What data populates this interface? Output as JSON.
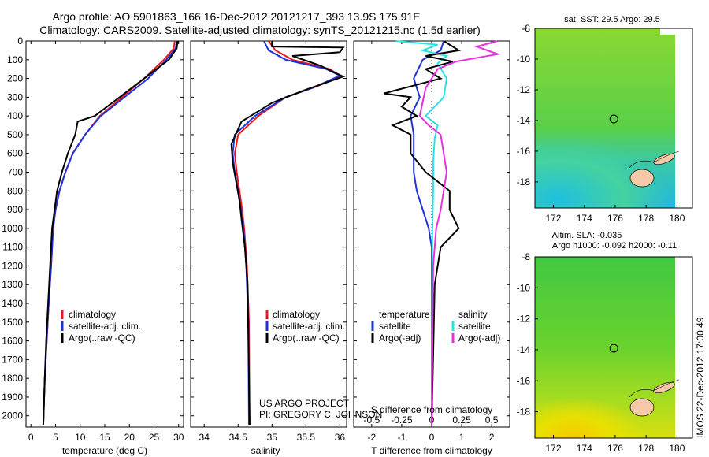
{
  "title_line1": "Argo profile: AO 5901863_166 16-Dec-2012 20121217_393 13.9S 175.91E",
  "title_line2": "Climatology: CARS2009. Satellite-adjusted climatology: synTS_20121215.nc (1.5d earlier)",
  "colors": {
    "clim": "#e8191e",
    "sat": "#1f32d8",
    "argo": "#000000",
    "sal_sat": "#27e3e8",
    "sal_argo": "#e830e0"
  },
  "chart_data": [
    {
      "type": "line",
      "name": "temperature",
      "xlabel": "temperature (deg C)",
      "ylabel": "",
      "xlim": [
        -1,
        31
      ],
      "ylim": [
        2060,
        0
      ],
      "xticks": [
        "0",
        "5",
        "10",
        "15",
        "20",
        "25",
        "30"
      ],
      "xtick_values": [
        0,
        5,
        10,
        15,
        20,
        25,
        30
      ],
      "yticks": [
        "0",
        "100",
        "200",
        "300",
        "400",
        "500",
        "600",
        "700",
        "800",
        "900",
        "1000",
        "1100",
        "1200",
        "1300",
        "1400",
        "1500",
        "1600",
        "1700",
        "1800",
        "1900",
        "2000"
      ],
      "ytick_values": [
        0,
        100,
        200,
        300,
        400,
        500,
        600,
        700,
        800,
        900,
        1000,
        1100,
        1200,
        1300,
        1400,
        1500,
        1600,
        1700,
        1800,
        1900,
        2000
      ],
      "legend": [
        "climatology",
        "satellite-adj. clim.",
        "Argo(..raw -QC)"
      ],
      "series": [
        {
          "name": "climatology",
          "color": "clim",
          "points": [
            [
              29.2,
              0
            ],
            [
              29.0,
              40
            ],
            [
              27.0,
              100
            ],
            [
              23.0,
              200
            ],
            [
              18.5,
              300
            ],
            [
              14.0,
              400
            ],
            [
              11.0,
              500
            ],
            [
              8.5,
              600
            ],
            [
              7.0,
              700
            ],
            [
              5.8,
              800
            ],
            [
              5.0,
              900
            ],
            [
              4.5,
              1000
            ],
            [
              4.1,
              1200
            ],
            [
              3.6,
              1400
            ],
            [
              3.2,
              1600
            ],
            [
              2.8,
              1800
            ],
            [
              2.5,
              2050
            ]
          ]
        },
        {
          "name": "satellite-adj. clim.",
          "color": "sat",
          "points": [
            [
              29.6,
              0
            ],
            [
              29.4,
              40
            ],
            [
              27.5,
              100
            ],
            [
              23.8,
              200
            ],
            [
              19.0,
              300
            ],
            [
              14.2,
              400
            ],
            [
              11.0,
              500
            ],
            [
              8.5,
              600
            ],
            [
              7.0,
              700
            ],
            [
              5.8,
              800
            ],
            [
              5.0,
              900
            ],
            [
              4.5,
              1000
            ],
            [
              4.1,
              1200
            ],
            [
              3.6,
              1400
            ],
            [
              3.2,
              1600
            ],
            [
              2.8,
              1800
            ],
            [
              2.5,
              2050
            ]
          ]
        },
        {
          "name": "Argo(..raw -QC)",
          "color": "argo",
          "points": [
            [
              29.8,
              0
            ],
            [
              29.6,
              40
            ],
            [
              28.0,
              100
            ],
            [
              23.0,
              200
            ],
            [
              18.0,
              300
            ],
            [
              13.0,
              400
            ],
            [
              9.5,
              430
            ],
            [
              9.0,
              500
            ],
            [
              7.5,
              600
            ],
            [
              6.3,
              700
            ],
            [
              5.3,
              800
            ],
            [
              4.8,
              900
            ],
            [
              4.3,
              1000
            ],
            [
              3.9,
              1200
            ],
            [
              3.5,
              1400
            ],
            [
              3.1,
              1600
            ],
            [
              2.8,
              1800
            ],
            [
              2.5,
              2050
            ]
          ]
        }
      ]
    },
    {
      "type": "line",
      "name": "salinity",
      "xlabel": "salinity",
      "xlim": [
        33.8,
        36.1
      ],
      "ylim": [
        2060,
        0
      ],
      "xticks": [
        "34",
        "34.5",
        "35",
        "35.5",
        "36"
      ],
      "xtick_values": [
        34,
        34.5,
        35,
        35.5,
        36
      ],
      "legend": [
        "climatology",
        "satellite-adj. clim.",
        "Argo(..raw -QC)"
      ],
      "annotation_line1": "US ARGO PROJECT",
      "annotation_line2": "PI: GREGORY C. JOHNSON",
      "series": [
        {
          "name": "climatology",
          "color": "clim",
          "points": [
            [
              34.95,
              0
            ],
            [
              35.05,
              50
            ],
            [
              35.3,
              100
            ],
            [
              35.85,
              150
            ],
            [
              36.02,
              190
            ],
            [
              35.6,
              250
            ],
            [
              35.2,
              300
            ],
            [
              34.8,
              400
            ],
            [
              34.5,
              500
            ],
            [
              34.45,
              600
            ],
            [
              34.48,
              700
            ],
            [
              34.52,
              800
            ],
            [
              34.56,
              900
            ],
            [
              34.59,
              1000
            ],
            [
              34.63,
              1200
            ],
            [
              34.66,
              1500
            ],
            [
              34.67,
              2050
            ]
          ]
        },
        {
          "name": "satellite-adj. clim.",
          "color": "sat",
          "points": [
            [
              34.88,
              0
            ],
            [
              34.95,
              50
            ],
            [
              35.2,
              100
            ],
            [
              35.8,
              150
            ],
            [
              36.0,
              185
            ],
            [
              35.6,
              250
            ],
            [
              35.2,
              300
            ],
            [
              34.75,
              400
            ],
            [
              34.45,
              500
            ],
            [
              34.42,
              600
            ],
            [
              34.45,
              700
            ],
            [
              34.5,
              800
            ],
            [
              34.54,
              900
            ],
            [
              34.58,
              1000
            ],
            [
              34.62,
              1200
            ],
            [
              34.65,
              1500
            ],
            [
              34.66,
              2050
            ]
          ]
        },
        {
          "name": "Argo(..raw -QC)",
          "color": "argo",
          "points": [
            [
              35.0,
              0
            ],
            [
              35.0,
              30
            ],
            [
              36.05,
              35
            ],
            [
              36.0,
              60
            ],
            [
              35.3,
              80
            ],
            [
              35.7,
              130
            ],
            [
              36.05,
              190
            ],
            [
              35.5,
              260
            ],
            [
              35.0,
              330
            ],
            [
              34.55,
              430
            ],
            [
              34.4,
              550
            ],
            [
              34.42,
              650
            ],
            [
              34.47,
              750
            ],
            [
              34.52,
              850
            ],
            [
              34.55,
              950
            ],
            [
              34.6,
              1100
            ],
            [
              34.64,
              1300
            ],
            [
              34.67,
              2050
            ]
          ]
        }
      ]
    },
    {
      "type": "line",
      "name": "differences",
      "xlabel": "T difference from climatology",
      "xlabel_top": "S difference from climatology",
      "xlim": [
        -2.6,
        2.6
      ],
      "ylim": [
        2060,
        0
      ],
      "xticks": [
        "-2",
        "-1",
        "0",
        "1",
        "2"
      ],
      "xtick_values": [
        -2,
        -1,
        0,
        1,
        2
      ],
      "sticks": [
        "-0.5",
        "-0.25",
        "0",
        "0.25",
        "0.5"
      ],
      "stick_values": [
        -2,
        -1,
        0,
        1,
        2
      ],
      "legend_title_left": "temperature",
      "legend_title_right": "salinity",
      "legend": [
        "satellite",
        "Argo(-adj)",
        "satellite",
        "Argo(-adj)"
      ],
      "series": [
        {
          "name": "T satellite",
          "color": "sat",
          "points": [
            [
              0.4,
              0
            ],
            [
              0.3,
              50
            ],
            [
              -0.3,
              100
            ],
            [
              -0.6,
              200
            ],
            [
              -0.4,
              300
            ],
            [
              -0.7,
              400
            ],
            [
              -0.6,
              500
            ],
            [
              -0.6,
              600
            ],
            [
              -0.6,
              700
            ],
            [
              -0.5,
              800
            ],
            [
              -0.3,
              900
            ],
            [
              -0.1,
              1000
            ],
            [
              0,
              1100
            ],
            [
              0,
              2050
            ]
          ]
        },
        {
          "name": "S satellite",
          "color": "sal_sat",
          "points": [
            [
              -1.2,
              0
            ],
            [
              0.2,
              20
            ],
            [
              -0.3,
              50
            ],
            [
              0.5,
              80
            ],
            [
              0.2,
              120
            ],
            [
              0.5,
              200
            ],
            [
              0.4,
              300
            ],
            [
              -0.2,
              400
            ],
            [
              0.2,
              450
            ],
            [
              0.1,
              520
            ],
            [
              0.05,
              650
            ],
            [
              0.05,
              800
            ],
            [
              0.02,
              1000
            ],
            [
              0,
              2050
            ]
          ]
        },
        {
          "name": "T Argo(-adj)",
          "color": "argo",
          "points": [
            [
              0.4,
              0
            ],
            [
              0.9,
              50
            ],
            [
              -0.2,
              80
            ],
            [
              0.7,
              110
            ],
            [
              -0.2,
              150
            ],
            [
              0.3,
              200
            ],
            [
              -1.6,
              280
            ],
            [
              -0.7,
              300
            ],
            [
              -1.0,
              350
            ],
            [
              -0.5,
              400
            ],
            [
              -1.3,
              450
            ],
            [
              -0.7,
              500
            ],
            [
              -0.7,
              600
            ],
            [
              -0.2,
              700
            ],
            [
              0.6,
              800
            ],
            [
              0.6,
              900
            ],
            [
              0.9,
              1000
            ],
            [
              0.3,
              1100
            ],
            [
              0.1,
              1300
            ],
            [
              0,
              2050
            ]
          ]
        },
        {
          "name": "S Argo(-adj)",
          "color": "sal_argo",
          "points": [
            [
              2.2,
              0
            ],
            [
              1.5,
              30
            ],
            [
              2.2,
              70
            ],
            [
              0.8,
              110
            ],
            [
              0.2,
              150
            ],
            [
              -0.2,
              250
            ],
            [
              -0.4,
              400
            ],
            [
              -0.1,
              450
            ],
            [
              0.3,
              500
            ],
            [
              0.4,
              600
            ],
            [
              0.5,
              700
            ],
            [
              0.4,
              800
            ],
            [
              0.3,
              900
            ],
            [
              0.15,
              1000
            ],
            [
              0.05,
              1200
            ],
            [
              0,
              2050
            ]
          ]
        }
      ]
    },
    {
      "type": "heatmap",
      "name": "sst map",
      "title": "sat. SST: 29.5  Argo: 29.5",
      "xlim": [
        170.8,
        181
      ],
      "ylim": [
        -19.7,
        -8
      ],
      "xticks": [
        "172",
        "174",
        "176",
        "178",
        "180"
      ],
      "xtick_values": [
        172,
        174,
        176,
        178,
        180
      ],
      "yticks": [
        "-8",
        "-10",
        "-12",
        "-14",
        "-16",
        "-18"
      ],
      "ytick_values": [
        -8,
        -10,
        -12,
        -14,
        -16,
        -18
      ],
      "marker": [
        175.91,
        -13.9
      ]
    },
    {
      "type": "heatmap",
      "name": "sla map",
      "title_line1": "Altim. SLA: -0.035",
      "title_line2": "Argo h1000: -0.092  h2000: -0.11",
      "xlim": [
        170.8,
        181
      ],
      "ylim": [
        -19.7,
        -8
      ],
      "xticks": [
        "172",
        "174",
        "176",
        "178",
        "180"
      ],
      "xtick_values": [
        172,
        174,
        176,
        178,
        180
      ],
      "yticks": [
        "-8",
        "-10",
        "-12",
        "-14",
        "-16",
        "-18"
      ],
      "ytick_values": [
        -8,
        -10,
        -12,
        -14,
        -16,
        -18
      ],
      "marker": [
        175.91,
        -13.9
      ]
    }
  ],
  "watermark": "IMOS 22-Dec-2012 17:00:49"
}
